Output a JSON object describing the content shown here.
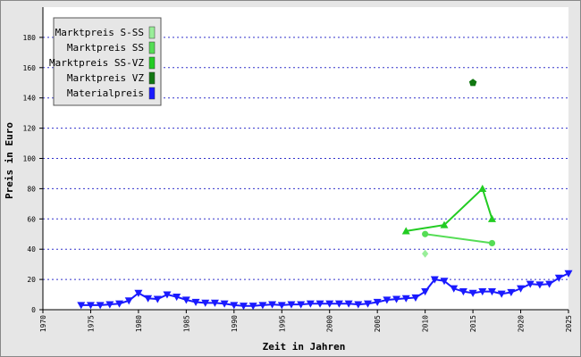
{
  "chart_data": {
    "type": "line",
    "xlabel": "Zeit in Jahren",
    "ylabel": "Preis in Euro",
    "xlim": [
      1970,
      2025
    ],
    "xticks": [
      1970,
      1975,
      1980,
      1985,
      1990,
      1995,
      2000,
      2005,
      2010,
      2015,
      2020,
      2025
    ],
    "ylim": [
      0,
      200
    ],
    "yticks": [
      0,
      20,
      40,
      60,
      80,
      100,
      120,
      140,
      160,
      180
    ],
    "grid": true,
    "legend": "upper left",
    "series": [
      {
        "name": "Marktpreis S-SS",
        "color": "#99ee99",
        "marker": "diamond",
        "x": [
          2010
        ],
        "values": [
          37
        ]
      },
      {
        "name": "Marktpreis SS",
        "color": "#55dd55",
        "marker": "circle",
        "x": [
          2010,
          2017
        ],
        "values": [
          50,
          44
        ]
      },
      {
        "name": "Marktpreis SS-VZ",
        "color": "#22cc22",
        "marker": "triangle-up",
        "x": [
          2008,
          2012,
          2016,
          2017
        ],
        "values": [
          52,
          56,
          80,
          60
        ]
      },
      {
        "name": "Marktpreis VZ",
        "color": "#117711",
        "marker": "pentagon",
        "x": [
          2015
        ],
        "values": [
          150
        ]
      },
      {
        "name": "Materialpreis",
        "color": "#1a1aff",
        "marker": "triangle-down",
        "x": [
          1974,
          1975,
          1976,
          1977,
          1978,
          1979,
          1980,
          1981,
          1982,
          1983,
          1984,
          1985,
          1986,
          1987,
          1988,
          1989,
          1990,
          1991,
          1992,
          1993,
          1994,
          1995,
          1996,
          1997,
          1998,
          1999,
          2000,
          2001,
          2002,
          2003,
          2004,
          2005,
          2006,
          2007,
          2008,
          2009,
          2010,
          2011,
          2012,
          2013,
          2014,
          2015,
          2016,
          2017,
          2018,
          2019,
          2020,
          2021,
          2022,
          2023,
          2024,
          2025
        ],
        "values": [
          3,
          3,
          3,
          3.5,
          4,
          6,
          11,
          7.5,
          7,
          10,
          8.5,
          6.5,
          5,
          4.5,
          4.5,
          4,
          3,
          2.5,
          2.5,
          3,
          3.5,
          3,
          3.5,
          3.5,
          4,
          4,
          4,
          4,
          4,
          3.5,
          4,
          5,
          6.5,
          7,
          7.5,
          8,
          12,
          20,
          19,
          14,
          12,
          11,
          12,
          12,
          10.5,
          11.5,
          14,
          17,
          16.5,
          17,
          21,
          24
        ]
      }
    ]
  }
}
